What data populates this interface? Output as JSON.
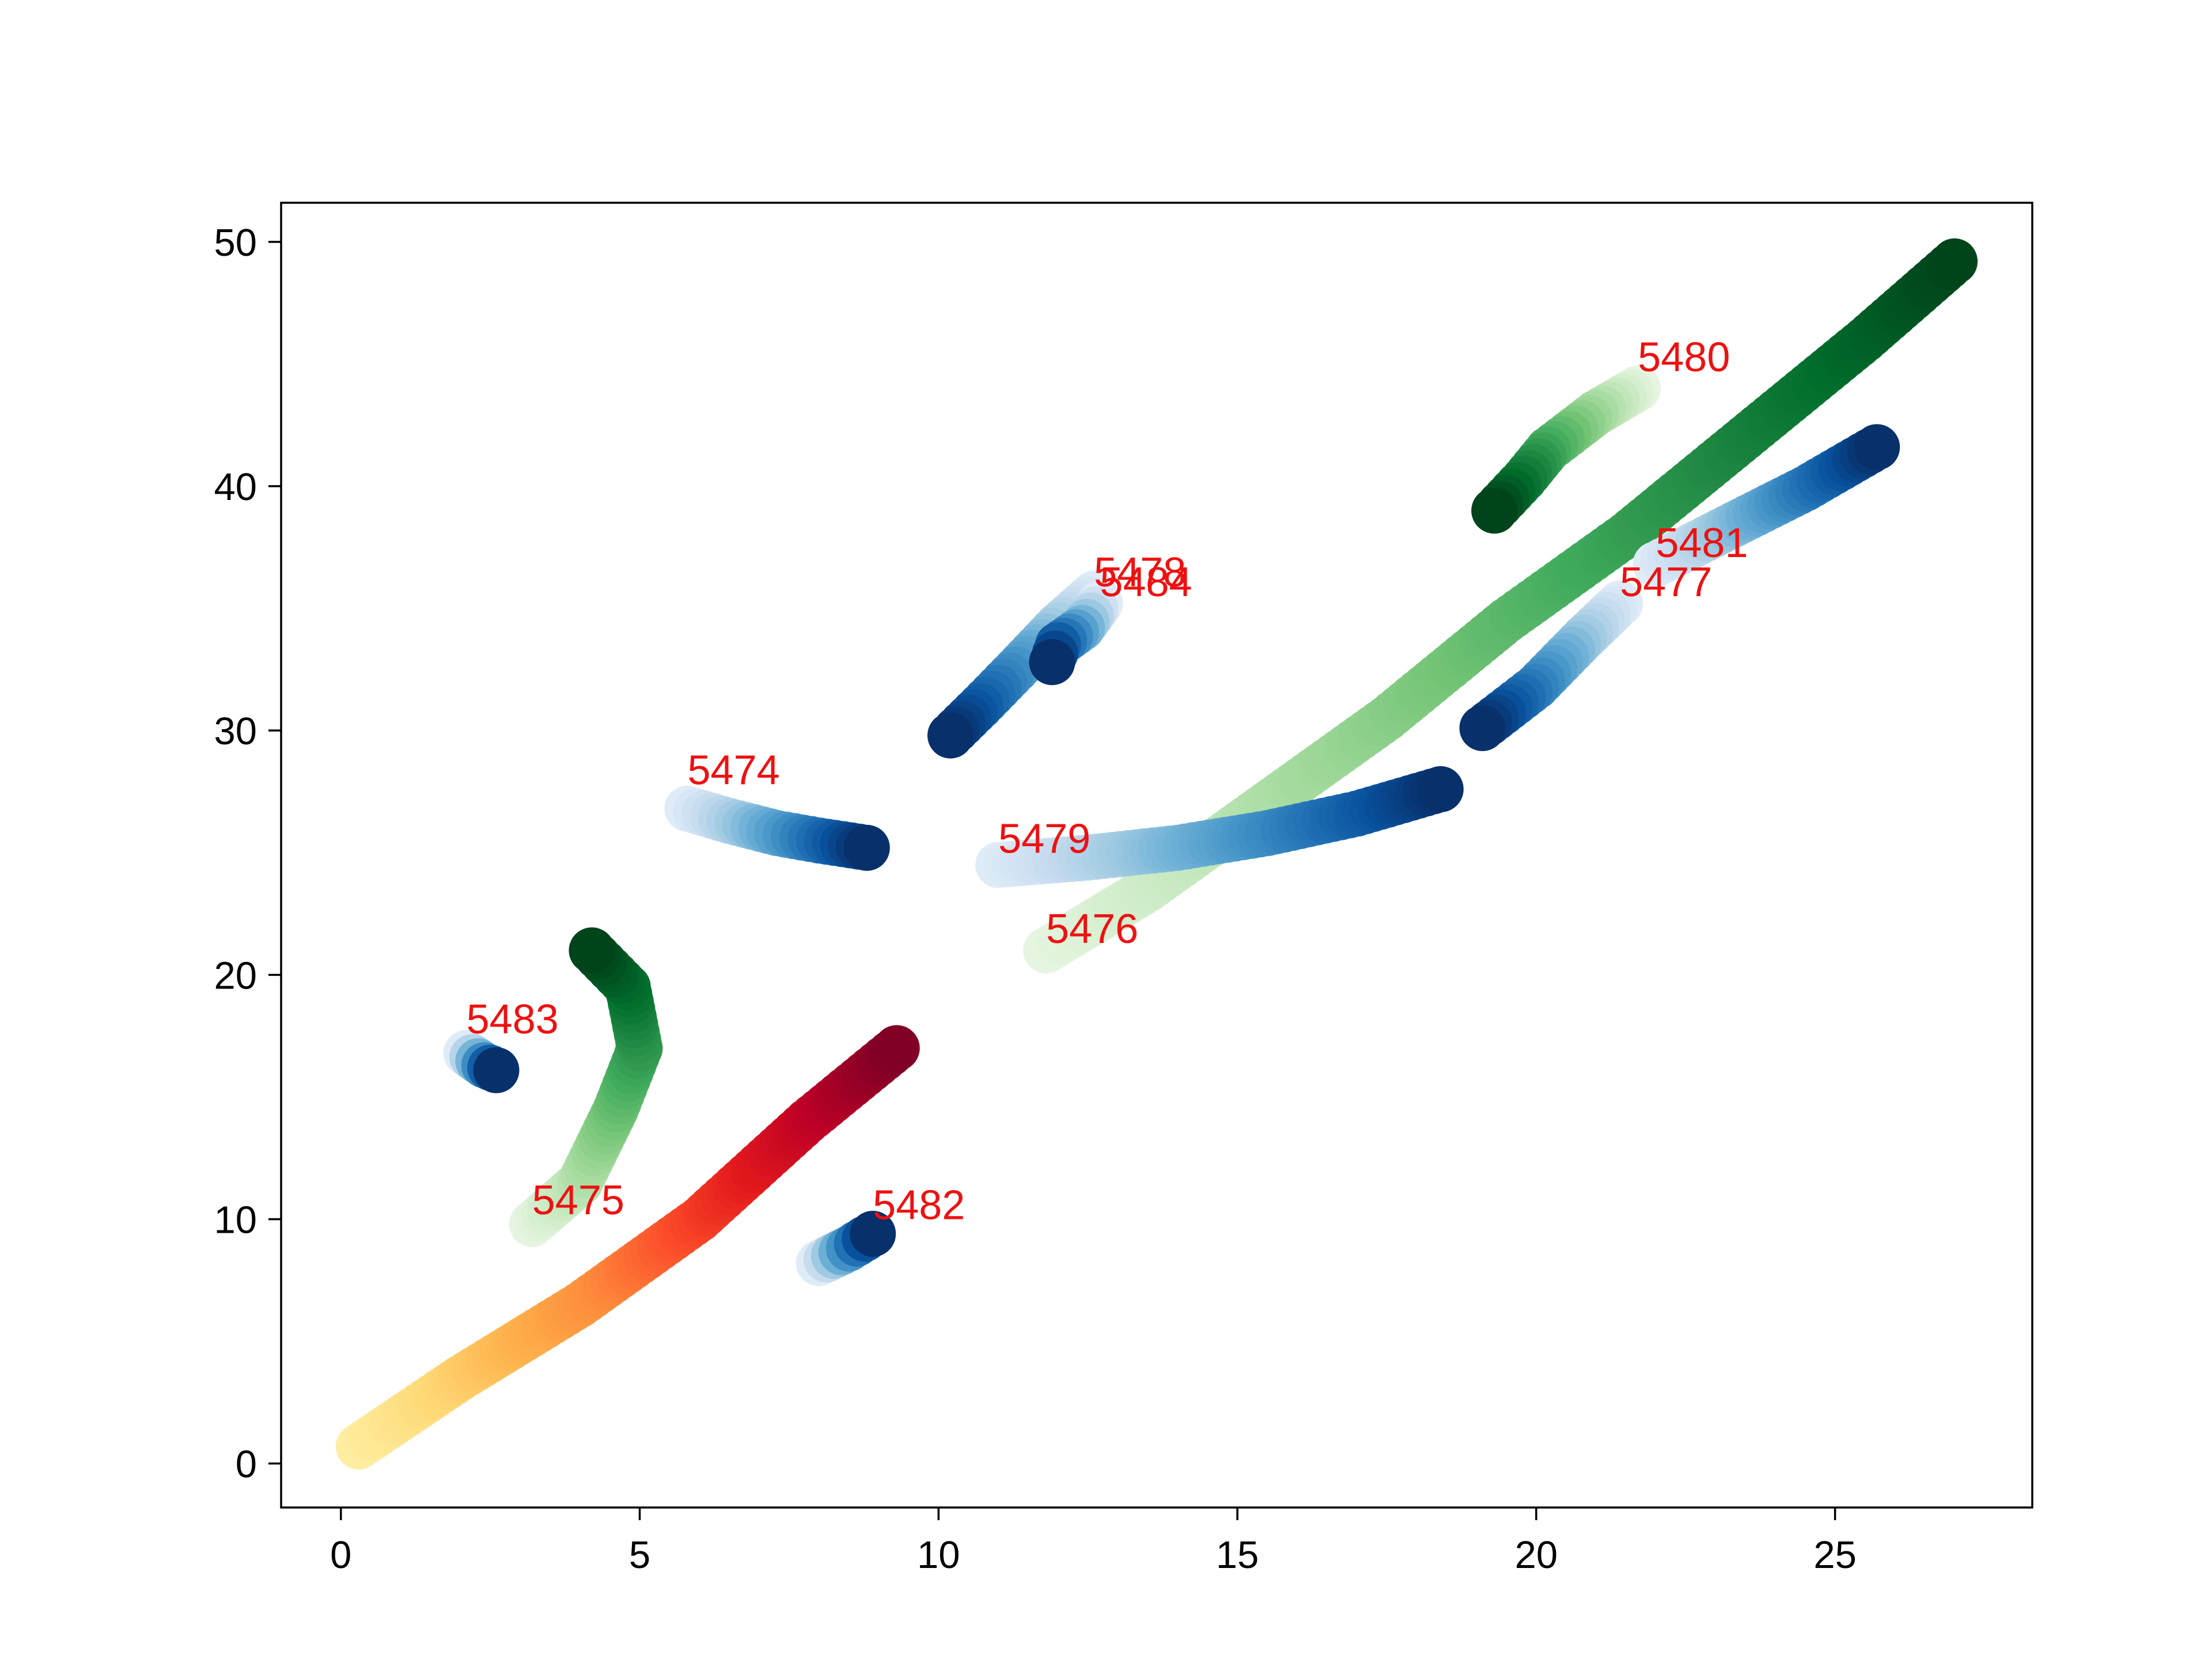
{
  "chart_data": {
    "type": "scatter",
    "title": "",
    "xlabel": "",
    "ylabel": "",
    "xlim": [
      -1.0,
      28.3
    ],
    "ylim": [
      -1.8,
      51.6
    ],
    "xticks": [
      0,
      5,
      10,
      15,
      20,
      25
    ],
    "yticks": [
      0,
      10,
      20,
      30,
      40,
      50
    ],
    "xtick_labels": [
      "0",
      "5",
      "10",
      "15",
      "20",
      "25"
    ],
    "ytick_labels": [
      "0",
      "10",
      "20",
      "30",
      "40",
      "50"
    ],
    "grid": false,
    "legend": "none",
    "label_color": "#ee1111",
    "colormaps": {
      "Blues": [
        "#f7fbff",
        "#deebf7",
        "#c6dbef",
        "#9ecae1",
        "#6baed6",
        "#4292c6",
        "#2171b5",
        "#08519c",
        "#08306b"
      ],
      "Greens": [
        "#f7fcf5",
        "#e5f5e0",
        "#c7e9c0",
        "#a1d99b",
        "#74c476",
        "#41ab5d",
        "#238b45",
        "#006d2c",
        "#00441b"
      ],
      "YlOrRd": [
        "#ffffcc",
        "#ffeda0",
        "#fed976",
        "#feb24c",
        "#fd8d3c",
        "#fc4e2a",
        "#e31a1c",
        "#bd0026",
        "#800026"
      ]
    },
    "series": [
      {
        "label": "5474",
        "colormap": "Blues",
        "label_at": [
          5.8,
          27.8
        ],
        "points": [
          [
            5.8,
            26.8
          ],
          [
            6.5,
            26.3
          ],
          [
            7.3,
            25.8
          ],
          [
            8.0,
            25.5
          ],
          [
            8.8,
            25.2
          ]
        ]
      },
      {
        "label": "5475",
        "colormap": "Greens",
        "label_at": [
          3.2,
          10.2
        ],
        "points": [
          [
            3.2,
            9.8
          ],
          [
            4.0,
            11.5
          ],
          [
            4.6,
            14.5
          ],
          [
            5.0,
            17.0
          ],
          [
            4.8,
            19.5
          ],
          [
            4.2,
            21.0
          ]
        ]
      },
      {
        "label": "5476",
        "colormap": "Greens",
        "label_at": [
          11.8,
          21.3
        ],
        "points": [
          [
            11.8,
            21.0
          ],
          [
            13.5,
            23.5
          ],
          [
            15.5,
            27.0
          ],
          [
            17.5,
            30.5
          ],
          [
            19.5,
            34.5
          ],
          [
            21.5,
            38.0
          ],
          [
            23.5,
            42.0
          ],
          [
            25.5,
            46.0
          ],
          [
            27.0,
            49.2
          ]
        ]
      },
      {
        "label": "5477",
        "colormap": "Blues",
        "label_at": [
          21.4,
          35.5
        ],
        "points": [
          [
            21.4,
            35.2
          ],
          [
            20.8,
            33.8
          ],
          [
            20.0,
            31.8
          ],
          [
            19.1,
            30.1
          ]
        ]
      },
      {
        "label": "5478",
        "colormap": "Blues",
        "label_at": [
          12.6,
          35.9
        ],
        "points": [
          [
            12.6,
            35.6
          ],
          [
            12.0,
            34.3
          ],
          [
            11.3,
            32.5
          ],
          [
            10.7,
            31.0
          ],
          [
            10.2,
            29.8
          ]
        ]
      },
      {
        "label": "5479",
        "colormap": "Blues",
        "label_at": [
          11.0,
          25.0
        ],
        "points": [
          [
            11.0,
            24.5
          ],
          [
            12.5,
            24.8
          ],
          [
            14.0,
            25.2
          ],
          [
            15.5,
            25.8
          ],
          [
            17.0,
            26.6
          ],
          [
            18.4,
            27.6
          ]
        ]
      },
      {
        "label": "5480",
        "colormap": "Greens",
        "label_at": [
          21.7,
          44.7
        ],
        "points": [
          [
            21.7,
            44.0
          ],
          [
            21.0,
            43.0
          ],
          [
            20.2,
            41.5
          ],
          [
            19.8,
            40.3
          ],
          [
            19.3,
            39.0
          ]
        ]
      },
      {
        "label": "5481",
        "colormap": "Blues",
        "label_at": [
          22.0,
          37.1
        ],
        "points": [
          [
            22.0,
            36.8
          ],
          [
            23.2,
            38.3
          ],
          [
            24.5,
            39.9
          ],
          [
            25.7,
            41.6
          ]
        ]
      },
      {
        "label": "5482",
        "colormap": "Blues",
        "label_at": [
          8.9,
          10.0
        ],
        "points": [
          [
            8.0,
            8.2
          ],
          [
            8.5,
            8.8
          ],
          [
            8.9,
            9.4
          ]
        ]
      },
      {
        "label": "5483",
        "colormap": "Blues",
        "label_at": [
          2.1,
          17.6
        ],
        "points": [
          [
            2.1,
            16.8
          ],
          [
            2.4,
            16.3
          ],
          [
            2.6,
            16.1
          ]
        ]
      },
      {
        "label": "5484",
        "colormap": "Blues",
        "label_at": [
          12.7,
          35.5
        ],
        "points": [
          [
            12.7,
            35.2
          ],
          [
            12.4,
            34.2
          ],
          [
            12.0,
            33.5
          ],
          [
            11.9,
            32.8
          ]
        ]
      },
      {
        "label": "",
        "colormap": "YlOrRd",
        "label_at": null,
        "points": [
          [
            0.3,
            0.7
          ],
          [
            2.0,
            3.5
          ],
          [
            4.0,
            6.5
          ],
          [
            6.0,
            10.0
          ],
          [
            7.8,
            14.0
          ],
          [
            9.3,
            17.0
          ]
        ]
      }
    ]
  }
}
